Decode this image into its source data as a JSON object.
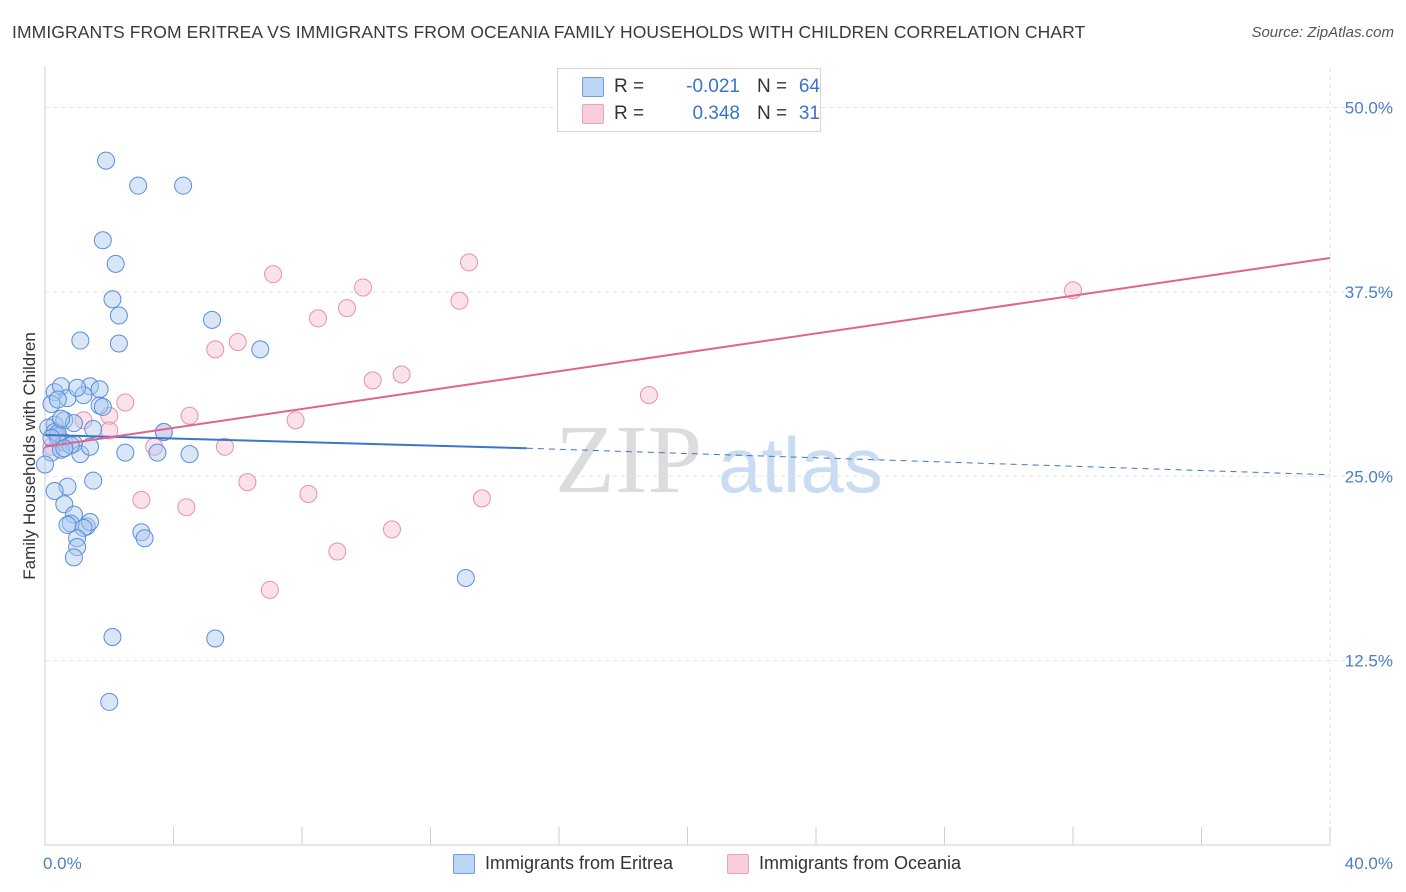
{
  "header": {
    "title": "IMMIGRANTS FROM ERITREA VS IMMIGRANTS FROM OCEANIA FAMILY HOUSEHOLDS WITH CHILDREN CORRELATION CHART",
    "source": "Source: ZipAtlas.com"
  },
  "watermark": {
    "zip": "ZIP",
    "atlas": "atlas"
  },
  "legend_top": {
    "rows": [
      {
        "r_label": "R =",
        "r_value": "-0.021",
        "n_label": "N =",
        "n_value": "64"
      },
      {
        "r_label": "R =",
        "r_value": "0.348",
        "n_label": "N =",
        "n_value": "31"
      }
    ]
  },
  "legend_bottom": {
    "items": [
      {
        "label": "Immigrants from Eritrea"
      },
      {
        "label": "Immigrants from Oceania"
      }
    ]
  },
  "colors": {
    "eritrea_fill": "#a9c8f0",
    "eritrea_stroke": "#5b8fd6",
    "eritrea_line": "#3a77c9",
    "oceania_fill": "#f6bfd0",
    "oceania_stroke": "#e891ad",
    "oceania_line": "#e0648f",
    "grid": "#e3e3e3",
    "tick_text": "#4a7fc9"
  },
  "chart_data": {
    "type": "scatter",
    "title": "IMMIGRANTS FROM ERITREA VS IMMIGRANTS FROM OCEANIA FAMILY HOUSEHOLDS WITH CHILDREN CORRELATION CHART",
    "xlabel": "",
    "ylabel": "Family Households with Children",
    "xlim": [
      0,
      40
    ],
    "ylim": [
      0,
      52
    ],
    "x_tick_labels": [
      "0.0%",
      "40.0%"
    ],
    "y_ticks": [
      12.5,
      25.0,
      37.5,
      50.0
    ],
    "y_tick_labels": [
      "12.5%",
      "25.0%",
      "37.5%",
      "50.0%"
    ],
    "grid": true,
    "series": [
      {
        "name": "Immigrants from Eritrea",
        "r": -0.021,
        "n": 64,
        "trend": {
          "x": [
            0.0,
            15.0
          ],
          "y": [
            27.8,
            26.9
          ],
          "dashed_to": [
            40.0,
            25.1
          ]
        },
        "points": [
          [
            1.9,
            46.4
          ],
          [
            2.9,
            44.7
          ],
          [
            4.3,
            44.7
          ],
          [
            1.8,
            41.0
          ],
          [
            2.2,
            39.4
          ],
          [
            2.1,
            37.0
          ],
          [
            2.3,
            35.9
          ],
          [
            5.2,
            35.6
          ],
          [
            1.1,
            34.2
          ],
          [
            2.3,
            34.0
          ],
          [
            6.7,
            33.6
          ],
          [
            0.3,
            30.7
          ],
          [
            0.5,
            31.1
          ],
          [
            1.4,
            31.1
          ],
          [
            1.7,
            30.9
          ],
          [
            0.7,
            30.3
          ],
          [
            1.2,
            30.5
          ],
          [
            1.7,
            29.8
          ],
          [
            0.2,
            29.9
          ],
          [
            0.3,
            28.5
          ],
          [
            0.6,
            28.8
          ],
          [
            0.9,
            28.6
          ],
          [
            1.5,
            28.2
          ],
          [
            0.1,
            28.3
          ],
          [
            0.3,
            28.0
          ],
          [
            0.4,
            27.7
          ],
          [
            0.6,
            27.3
          ],
          [
            0.9,
            27.2
          ],
          [
            0.2,
            26.6
          ],
          [
            0.5,
            26.8
          ],
          [
            1.1,
            26.5
          ],
          [
            2.5,
            26.6
          ],
          [
            3.5,
            26.6
          ],
          [
            4.5,
            26.5
          ],
          [
            3.7,
            28.0
          ],
          [
            0.0,
            25.8
          ],
          [
            1.5,
            24.7
          ],
          [
            0.7,
            24.3
          ],
          [
            0.3,
            24.0
          ],
          [
            0.6,
            23.1
          ],
          [
            0.9,
            22.4
          ],
          [
            0.8,
            21.8
          ],
          [
            1.3,
            21.6
          ],
          [
            1.4,
            21.9
          ],
          [
            0.7,
            21.7
          ],
          [
            1.2,
            21.5
          ],
          [
            1.0,
            20.8
          ],
          [
            3.0,
            21.2
          ],
          [
            3.1,
            20.8
          ],
          [
            1.0,
            20.2
          ],
          [
            0.9,
            19.5
          ],
          [
            13.1,
            18.1
          ],
          [
            2.1,
            14.1
          ],
          [
            5.3,
            14.0
          ],
          [
            2.0,
            9.7
          ],
          [
            0.4,
            27.9
          ],
          [
            0.8,
            27.1
          ],
          [
            0.2,
            27.6
          ],
          [
            1.4,
            27.0
          ],
          [
            0.5,
            28.9
          ],
          [
            1.0,
            31.0
          ],
          [
            0.4,
            30.2
          ],
          [
            1.8,
            29.7
          ],
          [
            0.6,
            26.9
          ]
        ]
      },
      {
        "name": "Immigrants from Oceania",
        "r": 0.348,
        "n": 31,
        "trend": {
          "x": [
            0.0,
            40.0
          ],
          "y": [
            27.0,
            39.8
          ]
        },
        "points": [
          [
            13.2,
            39.5
          ],
          [
            7.1,
            38.7
          ],
          [
            9.9,
            37.8
          ],
          [
            12.9,
            36.9
          ],
          [
            9.4,
            36.4
          ],
          [
            8.5,
            35.7
          ],
          [
            6.0,
            34.1
          ],
          [
            5.3,
            33.6
          ],
          [
            11.1,
            31.9
          ],
          [
            10.2,
            31.5
          ],
          [
            18.8,
            30.5
          ],
          [
            2.5,
            30.0
          ],
          [
            2.0,
            29.1
          ],
          [
            4.5,
            29.1
          ],
          [
            7.8,
            28.8
          ],
          [
            1.2,
            28.8
          ],
          [
            2.0,
            28.1
          ],
          [
            3.7,
            28.0
          ],
          [
            5.6,
            27.0
          ],
          [
            3.4,
            27.0
          ],
          [
            0.4,
            27.5
          ],
          [
            6.3,
            24.6
          ],
          [
            8.2,
            23.8
          ],
          [
            3.0,
            23.4
          ],
          [
            4.4,
            22.9
          ],
          [
            13.6,
            23.5
          ],
          [
            10.8,
            21.4
          ],
          [
            9.1,
            19.9
          ],
          [
            7.0,
            17.3
          ],
          [
            32.0,
            37.6
          ],
          [
            0.2,
            27.0
          ]
        ]
      }
    ]
  }
}
